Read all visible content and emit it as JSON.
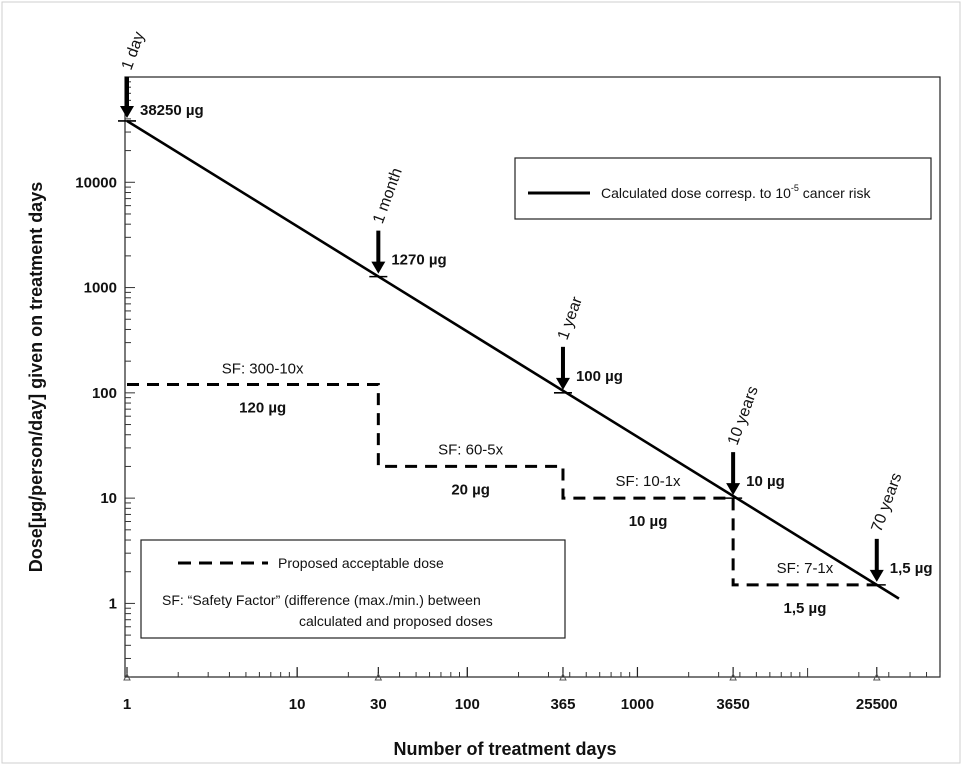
{
  "chart_data": {
    "type": "line",
    "x_scale": "log",
    "y_scale": "log",
    "xlim": [
      1,
      60000
    ],
    "ylim": [
      0.2,
      100000
    ],
    "xlabel": "Number of treatment days",
    "ylabel": "Dose[µg/person/day]  given on treatment days",
    "x_tick_labels": [
      "1",
      "10",
      "30",
      "100",
      "365",
      "1000",
      "3650",
      "25500"
    ],
    "x_ticks": [
      1,
      10,
      30,
      100,
      365,
      1000,
      3650,
      25500
    ],
    "y_tick_labels": [
      "1",
      "10",
      "100",
      "1000",
      "10000"
    ],
    "y_ticks": [
      1,
      10,
      100,
      1000,
      10000
    ],
    "grid": false,
    "series": [
      {
        "name": "Calculated dose corresp. to 10-5 cancer risk",
        "style": "solid",
        "x": [
          1,
          25500
        ],
        "y": [
          38250,
          1.5
        ]
      },
      {
        "name": "Proposed acceptable dose",
        "style": "dashed",
        "x": [
          1,
          30,
          30,
          365,
          365,
          3650,
          3650,
          25500
        ],
        "y": [
          120,
          120,
          20,
          20,
          10,
          10,
          1.5,
          1.5
        ]
      }
    ],
    "time_markers": [
      {
        "label": "1 day",
        "x": 1,
        "y": 38250,
        "dose_label": "38250 µg"
      },
      {
        "label": "1 month",
        "x": 30,
        "y": 1270,
        "dose_label": "1270 µg"
      },
      {
        "label": "1 year",
        "x": 365,
        "y": 100,
        "dose_label": "100 µg"
      },
      {
        "label": "10 years",
        "x": 3650,
        "y": 10,
        "dose_label": "10 µg"
      },
      {
        "label": "70 years",
        "x": 25500,
        "y": 1.5,
        "dose_label": "1,5 µg"
      }
    ],
    "step_annotations": [
      {
        "sf": "SF: 300-10x",
        "dose": "120 µg"
      },
      {
        "sf": "SF: 60-5x",
        "dose": "20 µg"
      },
      {
        "sf": "SF: 10-1x",
        "dose": "10 µg"
      },
      {
        "sf": "SF: 7-1x",
        "dose": "1,5 µg"
      }
    ],
    "legend_solid": {
      "text": "Calculated dose corresp. to 10",
      "sup": "-5",
      "tail": " cancer risk",
      "placement": "top-right"
    },
    "legend_dashed": {
      "text": "Proposed acceptable dose",
      "note_line1": "SF: “Safety Factor” (difference (max./min.) between",
      "note_line2": "calculated and proposed doses",
      "placement": "bottom-left"
    },
    "colors": {
      "line": "#000000",
      "background": "#ffffff"
    }
  }
}
